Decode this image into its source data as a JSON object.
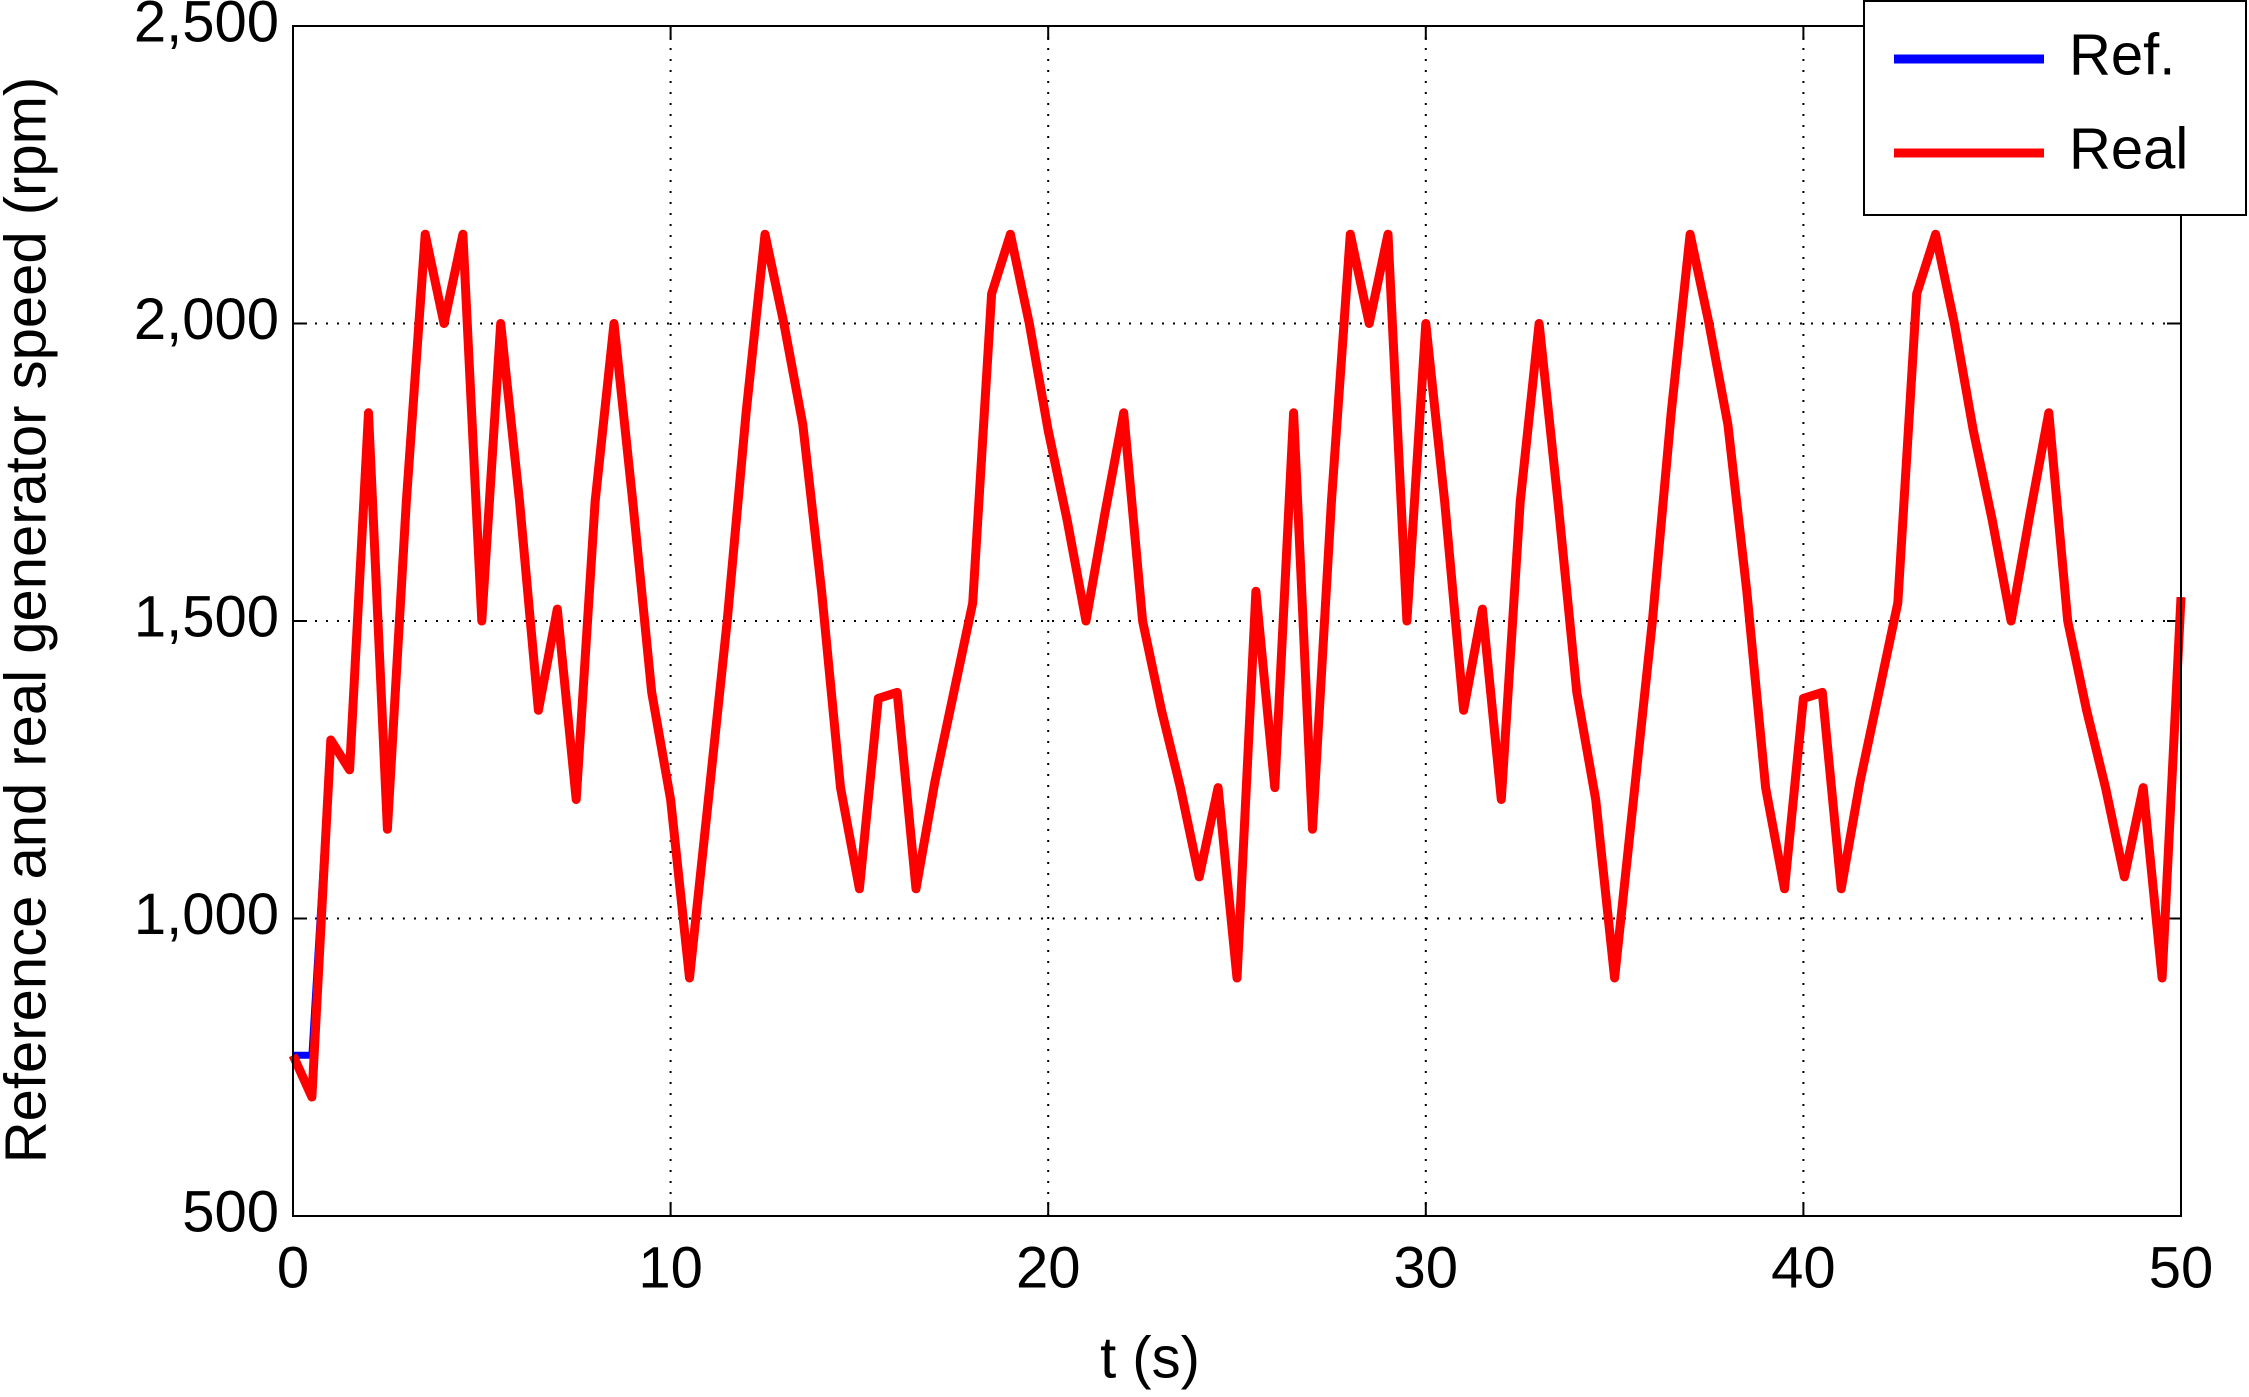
{
  "chart_data": {
    "type": "line",
    "xlabel": "t (s)",
    "ylabel": "Reference and real generator speed (rpm)",
    "x": [
      0,
      0.5,
      1,
      1.5,
      2,
      2.5,
      3,
      3.5,
      4,
      4.5,
      5,
      5.5,
      6,
      6.5,
      7,
      7.5,
      8,
      8.5,
      9,
      9.5,
      10,
      10.5,
      11,
      11.5,
      12,
      12.5,
      13,
      13.5,
      14,
      14.5,
      15,
      15.5,
      16,
      16.5,
      17,
      17.5,
      18,
      18.5,
      19,
      19.5,
      20,
      20.5,
      21,
      21.5,
      22,
      22.5,
      23,
      23.5,
      24,
      24.5,
      25,
      25.5,
      26,
      26.5,
      27,
      27.5,
      28,
      28.5,
      29,
      29.5,
      30,
      30.5,
      31,
      31.5,
      32,
      32.5,
      33,
      33.5,
      34,
      34.5,
      35,
      35.5,
      36,
      36.5,
      37,
      37.5,
      38,
      38.5,
      39,
      39.5,
      40,
      40.5,
      41,
      41.5,
      42,
      42.5,
      43,
      43.5,
      44,
      44.5,
      45,
      45.5,
      46,
      46.5,
      47,
      47.5,
      48,
      48.5,
      49,
      49.5,
      50
    ],
    "series": [
      {
        "name": "Ref.",
        "color": "#0000ff",
        "values": [
          770,
          770,
          1300,
          1250,
          1850,
          1150,
          1700,
          2150,
          2000,
          2150,
          1500,
          2000,
          1700,
          1350,
          1520,
          1200,
          1700,
          2000,
          1700,
          1380,
          1200,
          900,
          1200,
          1500,
          1850,
          2150,
          2000,
          1830,
          1550,
          1220,
          1050,
          1370,
          1380,
          1050,
          1230,
          1380,
          1530,
          2050,
          2150,
          2000,
          1820,
          1670,
          1500,
          1680,
          1850,
          1500,
          1350,
          1220,
          1070,
          1220,
          900,
          1550,
          1220,
          1850,
          1150,
          1700,
          2150,
          2000,
          2150,
          1500,
          2000,
          1700,
          1350,
          1520,
          1200,
          1700,
          2000,
          1700,
          1380,
          1200,
          900,
          1200,
          1500,
          1850,
          2150,
          2000,
          1830,
          1550,
          1220,
          1050,
          1370,
          1380,
          1050,
          1230,
          1380,
          1530,
          2050,
          2150,
          2000,
          1820,
          1670,
          1500,
          1680,
          1850,
          1500,
          1350,
          1220,
          1070,
          1220,
          900,
          1540
        ]
      },
      {
        "name": "Real",
        "color": "#ff0000",
        "values": [
          770,
          700,
          1300,
          1250,
          1850,
          1150,
          1700,
          2150,
          2000,
          2150,
          1500,
          2000,
          1700,
          1350,
          1520,
          1200,
          1700,
          2000,
          1700,
          1380,
          1200,
          900,
          1200,
          1500,
          1850,
          2150,
          2000,
          1830,
          1550,
          1220,
          1050,
          1370,
          1380,
          1050,
          1230,
          1380,
          1530,
          2050,
          2150,
          2000,
          1820,
          1670,
          1500,
          1680,
          1850,
          1500,
          1350,
          1220,
          1070,
          1220,
          900,
          1550,
          1220,
          1850,
          1150,
          1700,
          2150,
          2000,
          2150,
          1500,
          2000,
          1700,
          1350,
          1520,
          1200,
          1700,
          2000,
          1700,
          1380,
          1200,
          900,
          1200,
          1500,
          1850,
          2150,
          2000,
          1830,
          1550,
          1220,
          1050,
          1370,
          1380,
          1050,
          1230,
          1380,
          1530,
          2050,
          2150,
          2000,
          1820,
          1670,
          1500,
          1680,
          1850,
          1500,
          1350,
          1220,
          1070,
          1220,
          900,
          1540
        ]
      }
    ],
    "xlim": [
      0,
      50
    ],
    "xticks": [
      0,
      10,
      20,
      30,
      40,
      50
    ],
    "ylim": [
      500,
      2500
    ],
    "yticks": [
      500,
      {
        "value": 1000,
        "label": "1,000"
      },
      {
        "value": 1500,
        "label": "1,500"
      },
      {
        "value": 2000,
        "label": "2,000"
      },
      {
        "value": 2500,
        "label": "2,500"
      }
    ],
    "grid": true,
    "legend": "northeast"
  }
}
